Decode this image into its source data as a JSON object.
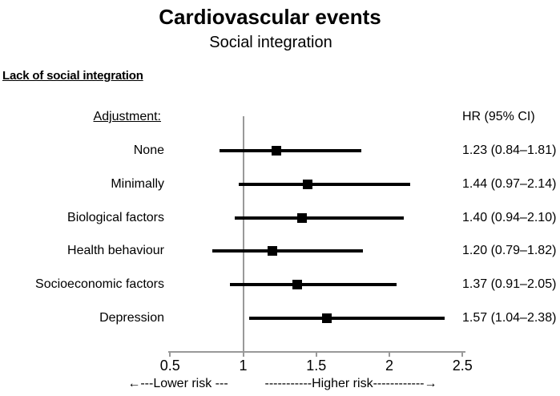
{
  "title": "Cardiovascular events",
  "subtitle": "Social integration",
  "section_heading": "Lack of social integration",
  "columns": {
    "left_header": "Adjustment:",
    "right_header": "HR (95% CI)"
  },
  "chart_data": {
    "type": "forest",
    "title": "Cardiovascular events",
    "subtitle": "Social integration",
    "group_label": "Lack of social integration",
    "categories": [
      "None",
      "Minimally",
      "Biological factors",
      "Health behaviour",
      "Socioeconomic factors",
      "Depression"
    ],
    "series": [
      {
        "name": "HR",
        "values": [
          1.23,
          1.44,
          1.4,
          1.2,
          1.37,
          1.57
        ]
      }
    ],
    "ci_low": [
      0.84,
      0.97,
      0.94,
      0.79,
      0.91,
      1.04
    ],
    "ci_high": [
      1.81,
      2.14,
      2.1,
      1.82,
      2.05,
      2.38
    ],
    "value_labels": [
      "1.23 (0.84–1.81)",
      "1.44 (0.97–2.14)",
      "1.40 (0.94–2.10)",
      "1.20 (0.79–1.82)",
      "1.37 (0.91–2.05)",
      "1.57 (1.04–2.38)"
    ],
    "x_tick_values": [
      0.5,
      1,
      1.5,
      2,
      2.5
    ],
    "x_tick_labels": [
      "0.5",
      "1",
      "1.5",
      "2",
      "2.5"
    ],
    "xlim": [
      0.5,
      2.5
    ],
    "reference_line": 1,
    "grid": false,
    "legend": "none",
    "xlabel_left": "←---Lower risk ---",
    "xlabel_right": "-----------Higher risk------------→"
  },
  "colors": {
    "marker": "#000000",
    "ci_line": "#000000",
    "axis": "#999999",
    "reference_line": "#999999",
    "text": "#000000"
  }
}
